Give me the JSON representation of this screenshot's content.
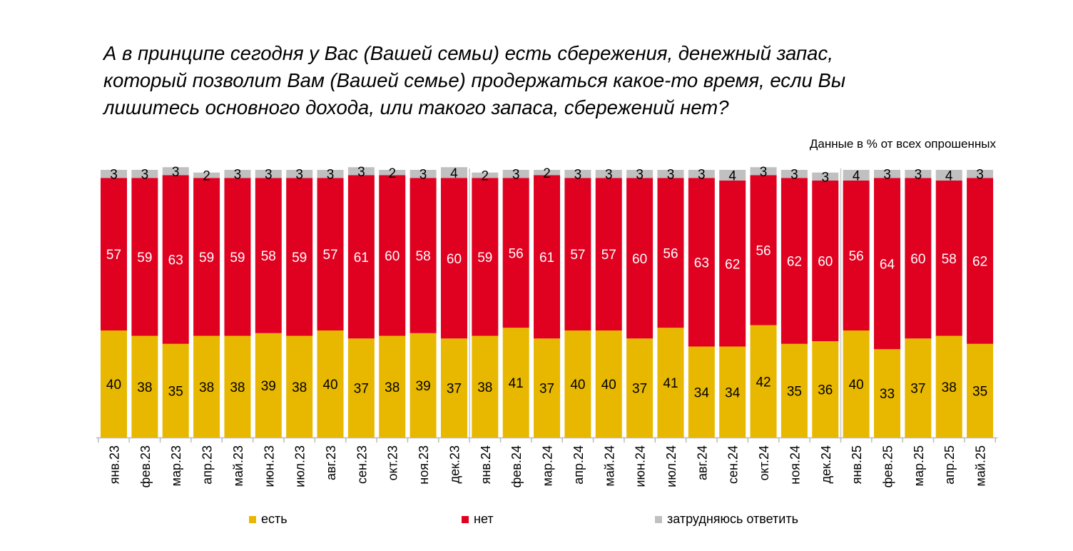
{
  "chart_data": {
    "type": "bar",
    "stacked": true,
    "title_lines": [
      "А в принципе сегодня у Вас (Вашей семьи) есть сбережения, денежный запас,",
      "который позволит Вам (Вашей семье) продержаться какое-то время, если Вы",
      "лишитесь основного дохода, или такого запаса, сбережений нет?"
    ],
    "subtitle": "Данные в % от всех опрошенных",
    "categories": [
      "янв.23",
      "фев.23",
      "мар.23",
      "апр.23",
      "май.23",
      "июн.23",
      "июл.23",
      "авг.23",
      "сен.23",
      "окт.23",
      "ноя.23",
      "дек.23",
      "янв.24",
      "фев.24",
      "мар.24",
      "апр.24",
      "май.24",
      "июн.24",
      "июл.24",
      "авг.24",
      "сен.24",
      "окт.24",
      "ноя.24",
      "дек.24",
      "янв.25",
      "фев.25",
      "мар.25",
      "апр.25",
      "май.25"
    ],
    "series": [
      {
        "name": "есть",
        "color": "#E8B800",
        "label_color": "#000000",
        "values": [
          40,
          38,
          35,
          38,
          38,
          39,
          38,
          40,
          37,
          38,
          39,
          37,
          38,
          41,
          37,
          40,
          40,
          37,
          41,
          34,
          34,
          42,
          35,
          36,
          40,
          33,
          37,
          38,
          35
        ]
      },
      {
        "name": "нет",
        "color": "#E00020",
        "label_color": "#FFFFFF",
        "values": [
          57,
          59,
          63,
          59,
          59,
          58,
          59,
          57,
          61,
          60,
          58,
          60,
          59,
          56,
          61,
          57,
          57,
          60,
          56,
          63,
          62,
          56,
          62,
          60,
          56,
          64,
          60,
          58,
          62
        ]
      },
      {
        "name": "затрудняюсь ответить",
        "color": "#C0C0C0",
        "label_color": "#000000",
        "values": [
          3,
          3,
          3,
          2,
          3,
          3,
          3,
          3,
          3,
          2,
          3,
          4,
          2,
          3,
          2,
          3,
          3,
          3,
          3,
          3,
          4,
          3,
          3,
          3,
          4,
          3,
          3,
          4,
          3
        ]
      }
    ],
    "ylim": [
      0,
      100
    ],
    "grid": false,
    "year_separators_after": [
      "дек.23",
      "дек.24"
    ],
    "legend_placement": "bottom"
  }
}
